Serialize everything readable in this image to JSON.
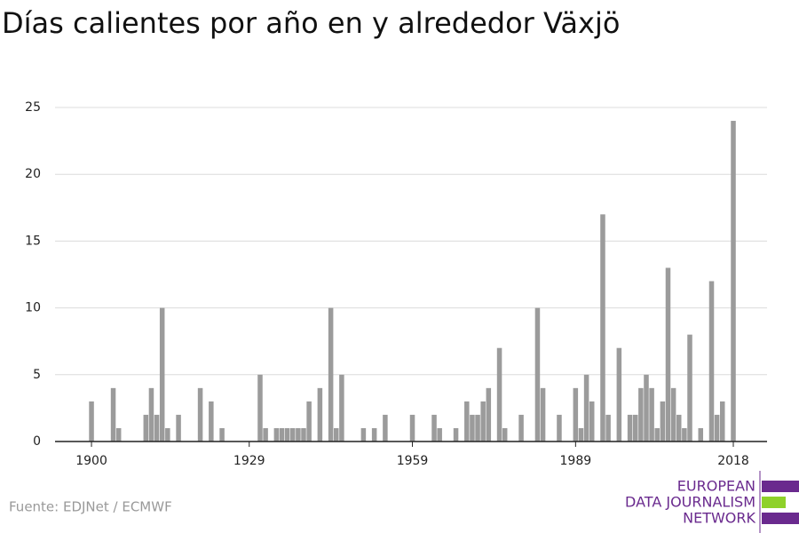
{
  "chart_data": {
    "type": "bar",
    "title": "Días calientes por año en y alrededor Växjö",
    "source": "Fuente: EDJNet / ECMWF",
    "logo": [
      "EUROPEAN",
      "DATA JOURNALISM",
      "NETWORK"
    ],
    "color": "#9b9b9b",
    "x": [
      1900,
      1904,
      1905,
      1910,
      1911,
      1912,
      1913,
      1914,
      1916,
      1920,
      1922,
      1924,
      1931,
      1932,
      1934,
      1935,
      1936,
      1937,
      1938,
      1939,
      1940,
      1942,
      1944,
      1945,
      1946,
      1950,
      1952,
      1954,
      1959,
      1963,
      1964,
      1967,
      1969,
      1970,
      1971,
      1972,
      1973,
      1975,
      1976,
      1979,
      1982,
      1983,
      1986,
      1989,
      1990,
      1991,
      1992,
      1994,
      1995,
      1997,
      1999,
      2000,
      2001,
      2002,
      2003,
      2004,
      2005,
      2006,
      2007,
      2008,
      2009,
      2010,
      2012,
      2014,
      2015,
      2016,
      2018
    ],
    "values": [
      3,
      4,
      1,
      2,
      4,
      2,
      10,
      1,
      2,
      4,
      3,
      1,
      5,
      1,
      1,
      1,
      1,
      1,
      1,
      1,
      3,
      4,
      10,
      1,
      5,
      1,
      1,
      2,
      2,
      2,
      1,
      1,
      3,
      2,
      2,
      3,
      4,
      7,
      1,
      2,
      10,
      4,
      2,
      4,
      1,
      5,
      3,
      17,
      2,
      7,
      2,
      2,
      4,
      5,
      4,
      1,
      3,
      13,
      4,
      2,
      1,
      8,
      1,
      12,
      2,
      3,
      24
    ],
    "xlim": [
      1893.3,
      2024.2
    ],
    "xticks": [
      1900,
      1929,
      1959,
      1989,
      2018
    ],
    "ylim": [
      0,
      25
    ],
    "yticks": [
      0,
      5,
      10,
      15,
      20,
      25
    ],
    "grid": true
  }
}
